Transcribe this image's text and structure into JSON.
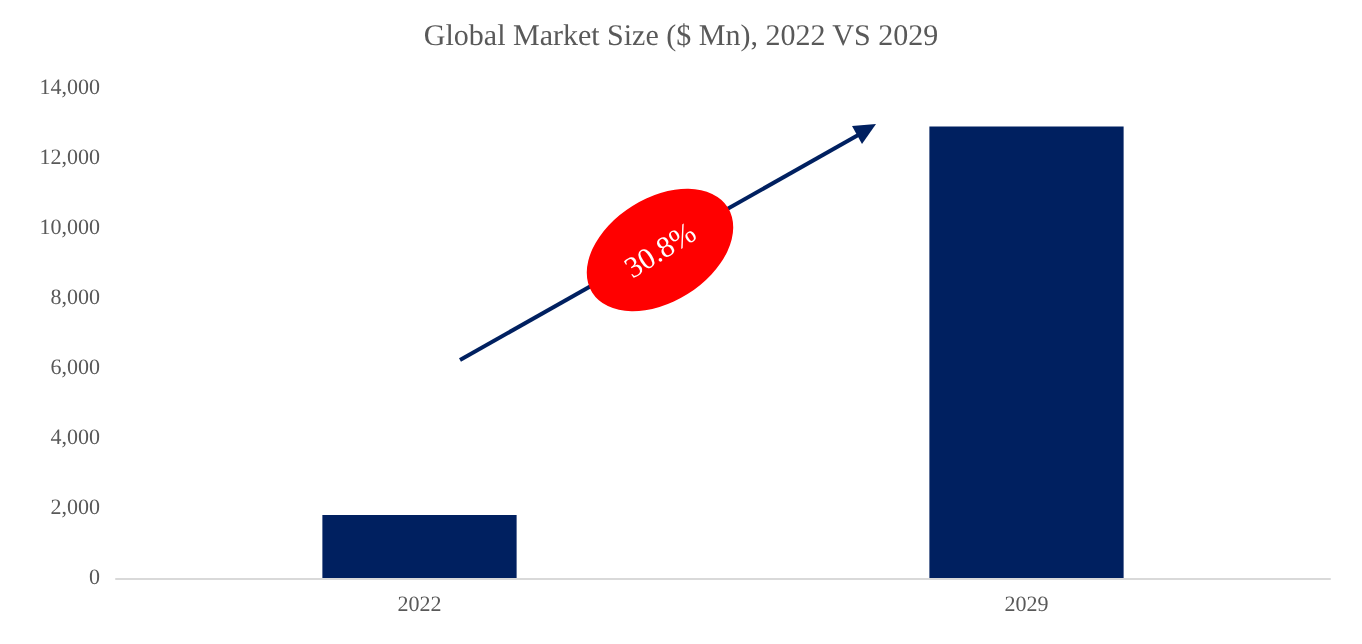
{
  "chart_data": {
    "type": "bar",
    "title": "Global Market Size ($ Mn), 2022 VS 2029",
    "categories": [
      "2022",
      "2029"
    ],
    "values": [
      1800,
      12900
    ],
    "color": "#002060",
    "ylim": [
      0,
      14000
    ],
    "yticks": [
      0,
      {
        "value": 2000,
        "label": "2,000"
      },
      {
        "value": 4000,
        "label": "4,000"
      },
      {
        "value": 6000,
        "label": "6,000"
      },
      {
        "value": 8000,
        "label": "8,000"
      },
      {
        "value": 10000,
        "label": "10,000"
      },
      {
        "value": 12000,
        "label": "12,000"
      },
      {
        "value": 14000,
        "label": "14,000"
      }
    ],
    "grid": false,
    "annotations": [
      "30.8%"
    ]
  }
}
